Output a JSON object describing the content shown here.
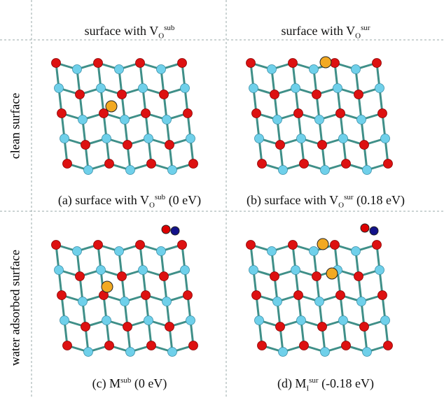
{
  "header": {
    "columns": [
      {
        "text": "surface with V",
        "sub": "O",
        "sup": "sub"
      },
      {
        "text": "surface with V",
        "sub": "O",
        "sup": "sur"
      }
    ]
  },
  "rows": [
    "clean surface",
    "water adsorbed surface"
  ],
  "panels": [
    {
      "label": "(a) surface with V",
      "sub": "O",
      "sup": "sub",
      "energy": "(0 eV)"
    },
    {
      "label": "(b) surface with V",
      "sub": "O",
      "sup": "sur",
      "energy": "(0.18 eV)"
    },
    {
      "label": "(c) M",
      "sup": "sub",
      "energy": "(0 eV)"
    },
    {
      "label": "(d) M",
      "sub": "I",
      "sup": "sur",
      "energy": "(-0.18 eV)"
    }
  ]
}
